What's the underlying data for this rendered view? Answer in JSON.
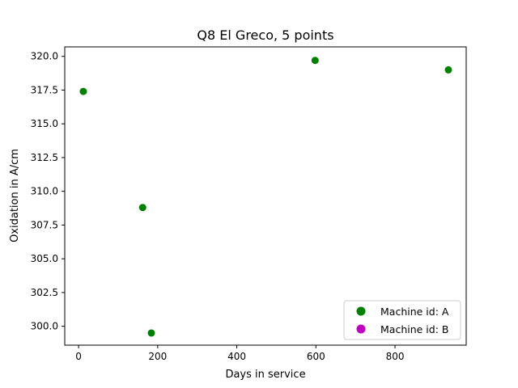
{
  "chart_data": {
    "type": "scatter",
    "title": "Q8 El Greco, 5 points",
    "xlabel": "Days in service",
    "ylabel": "Oxidation in A/cm",
    "xlim": [
      -35,
      980
    ],
    "ylim": [
      298.6,
      320.7
    ],
    "xticks": [
      0,
      200,
      400,
      600,
      800
    ],
    "xtick_labels": [
      "0",
      "200",
      "400",
      "600",
      "800"
    ],
    "yticks": [
      300.0,
      302.5,
      305.0,
      307.5,
      310.0,
      312.5,
      315.0,
      317.5,
      320.0
    ],
    "ytick_labels": [
      "300.0",
      "302.5",
      "305.0",
      "307.5",
      "310.0",
      "312.5",
      "315.0",
      "317.5",
      "320.0"
    ],
    "grid": false,
    "legend_position": "lower-right",
    "series": [
      {
        "name": "Machine id: A",
        "color": "#008000",
        "points": [
          {
            "x": 12,
            "y": 317.4
          },
          {
            "x": 162,
            "y": 308.8
          },
          {
            "x": 184,
            "y": 299.5
          },
          {
            "x": 598,
            "y": 319.7
          },
          {
            "x": 935,
            "y": 319.0
          }
        ]
      },
      {
        "name": "Machine id: B",
        "color": "#bf00bf",
        "points": []
      }
    ]
  }
}
